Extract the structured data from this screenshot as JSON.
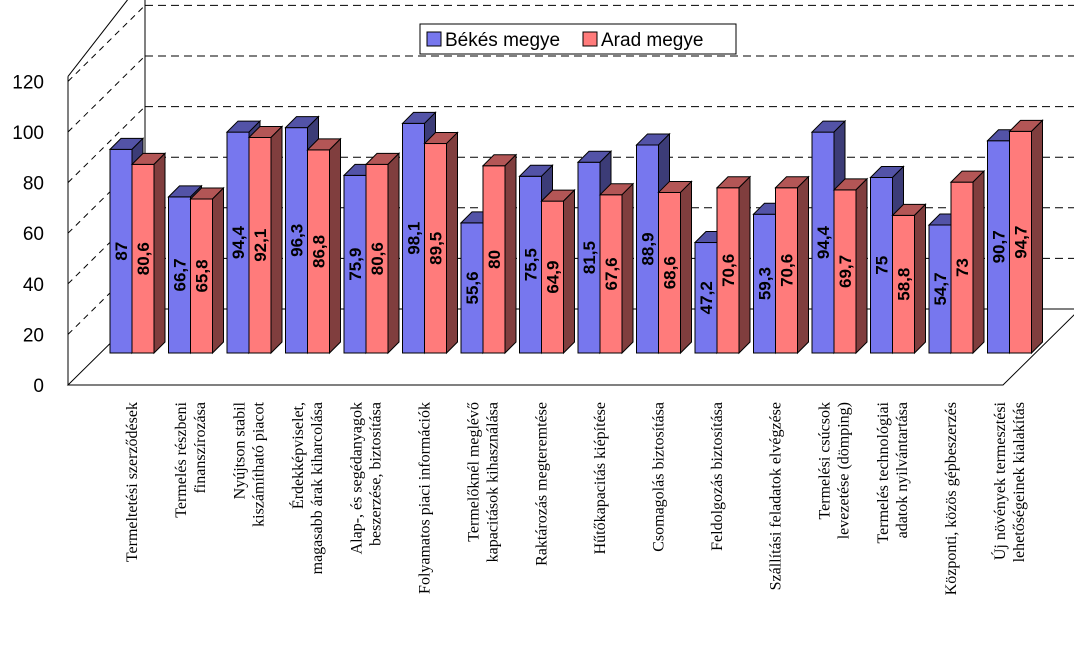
{
  "chart_data": {
    "type": "bar",
    "title": "",
    "xlabel": "",
    "ylabel": "",
    "ylim": [
      0,
      120
    ],
    "yticks": [
      "0",
      "20",
      "40",
      "60",
      "80",
      "100",
      "120"
    ],
    "grid": true,
    "legend_position": "top",
    "colors": {
      "series_1": "#7777ee",
      "series_2": "#ff7b7b",
      "floor": "#ffffff",
      "grid": "#000000"
    },
    "categories": [
      "Termeltetési szerződések",
      "Termelés részbeni\nfinanszírozása",
      "Nyújtson stabil\nkiszámítható piacot",
      "Érdekképviselet,\nmagasabb árak kiharcolása",
      "Alap-, és segédanyagok\nbeszerzése, biztosítása",
      "Folyamatos piaci információk",
      "Termelőknél meglévő\nkapacitások kihasználása",
      "Raktározás megteremtése",
      "Hűtőkapacitás kiépítése",
      "Csomagolás biztosítása",
      "Feldolgozás biztosítása",
      "Szállítási feladatok elvégzése",
      "Termelési csúcsok\nlevezetése (dömping)",
      "Termelés technológiai\nadatok nyilvántartása",
      "Központi, közös gépbeszerzés",
      "Új növények termesztési\nlehetőségeinek kialakítás"
    ],
    "series": [
      {
        "name": "Békés megye",
        "values": [
          87,
          66.7,
          94.4,
          96.3,
          75.9,
          98.1,
          55.6,
          75.5,
          81.5,
          88.9,
          47.2,
          59.3,
          94.4,
          75,
          54.7,
          90.7
        ],
        "labels": [
          "87",
          "66,7",
          "94,4",
          "96,3",
          "75,9",
          "98,1",
          "55,6",
          "75,5",
          "81,5",
          "88,9",
          "47,2",
          "59,3",
          "94,4",
          "75",
          "54,7",
          "90,7"
        ]
      },
      {
        "name": "Arad megye",
        "values": [
          80.6,
          65.8,
          92.1,
          86.8,
          80.6,
          89.5,
          80,
          64.9,
          67.6,
          68.6,
          70.6,
          70.6,
          69.7,
          58.8,
          73,
          94.7
        ],
        "labels": [
          "80,6",
          "65,8",
          "92,1",
          "86,8",
          "80,6",
          "89,5",
          "80",
          "64,9",
          "67,6",
          "68,6",
          "70,6",
          "70,6",
          "69,7",
          "58,8",
          "73",
          "94,7"
        ]
      }
    ]
  }
}
